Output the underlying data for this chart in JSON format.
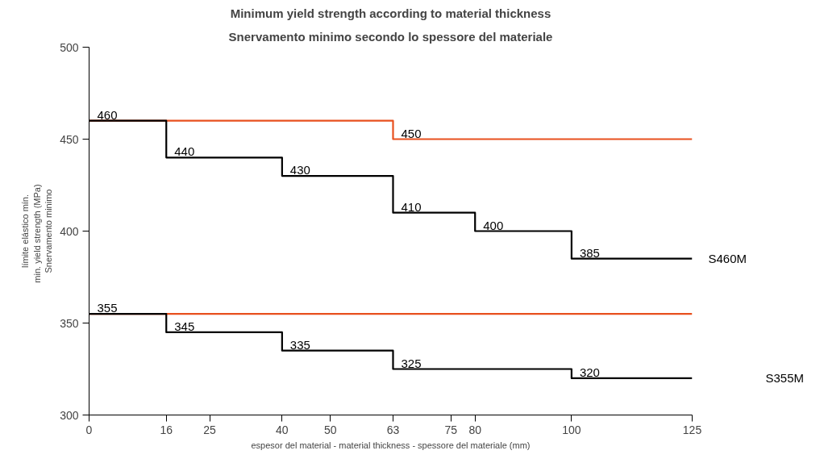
{
  "chart_data": {
    "type": "step",
    "title": "Minimum yield strength according to material thickness",
    "subtitle": "Snervamento minimo secondo lo spessore del materiale",
    "xlabel": "espesor del material - material thickness - spessore del materiale (mm)",
    "ylabel": "límite elástico mín.\nmin. yield strength   (MPa)\nSnervamento minimo",
    "xlim": [
      0,
      125
    ],
    "ylim": [
      300,
      500
    ],
    "xticks": [
      0,
      {
        "value": 16,
        "label": "16"
      },
      25,
      {
        "value": 40,
        "label": "40"
      },
      50,
      {
        "value": 63,
        "label": "63"
      },
      75,
      {
        "value": 80,
        "label": "80"
      },
      100,
      125
    ],
    "yticks": [
      300,
      350,
      400,
      450,
      500
    ],
    "grid": false,
    "line_style": "solid",
    "marker": "none",
    "series": [
      {
        "name": null,
        "color": "#e8501e",
        "x": [
          0,
          63,
          125
        ],
        "values": [
          460,
          450,
          450
        ],
        "value_labels": [
          null,
          "450",
          null
        ]
      },
      {
        "name": null,
        "color": "#e8501e",
        "x": [
          0,
          125
        ],
        "values": [
          355,
          355
        ],
        "value_labels": [
          null,
          null
        ]
      },
      {
        "name": "S460M",
        "color": "#000000",
        "x": [
          0,
          16,
          40,
          63,
          80,
          100,
          125
        ],
        "values": [
          460,
          440,
          430,
          410,
          400,
          385,
          385
        ],
        "value_labels": [
          "460",
          "440",
          "430",
          "410",
          "400",
          "385",
          null
        ]
      },
      {
        "name": "S355M",
        "color": "#000000",
        "x": [
          0,
          16,
          40,
          63,
          100,
          125
        ],
        "values": [
          355,
          345,
          335,
          325,
          320,
          320
        ],
        "value_labels": [
          "355",
          "345",
          "335",
          "325",
          "320",
          null
        ]
      }
    ]
  }
}
